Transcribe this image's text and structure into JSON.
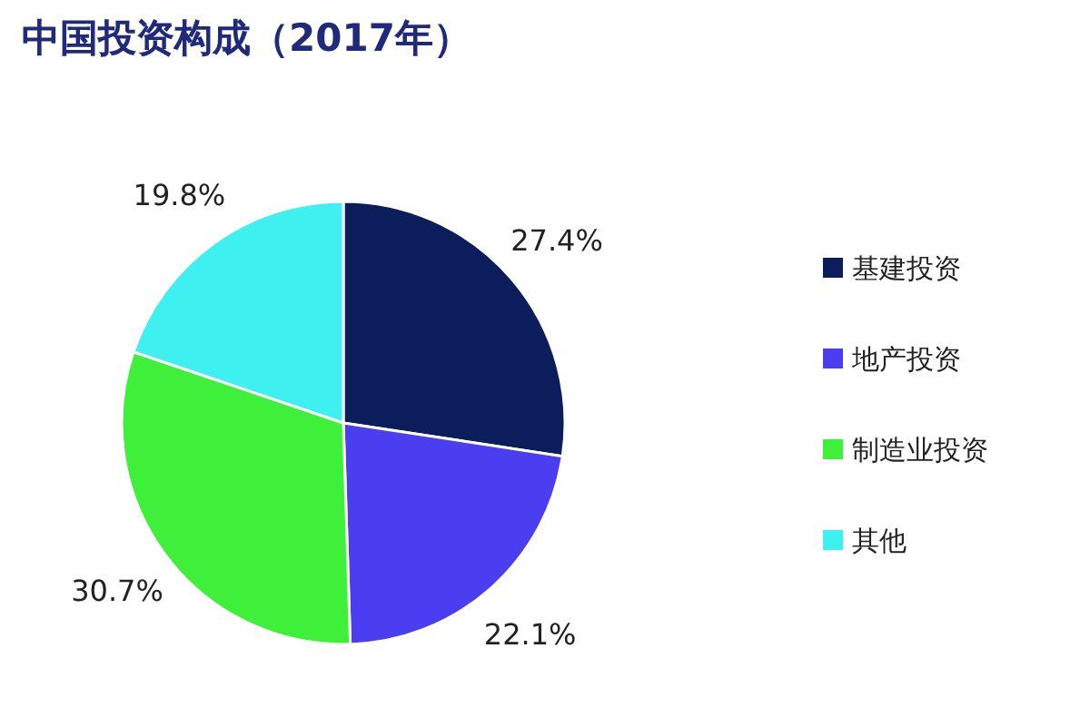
{
  "chart_data": {
    "type": "pie",
    "title": "中国投资构成（2017年）",
    "categories": [
      "基建投资",
      "地产投资",
      "制造业投资",
      "其他"
    ],
    "values": [
      27.4,
      22.1,
      30.7,
      19.8
    ],
    "colors": [
      "#0b1d5a",
      "#4a3ef0",
      "#3ef03a",
      "#3ef0f0"
    ],
    "value_labels": [
      "27.4%",
      "22.1%",
      "30.7%",
      "19.8%"
    ],
    "legend": "right"
  }
}
